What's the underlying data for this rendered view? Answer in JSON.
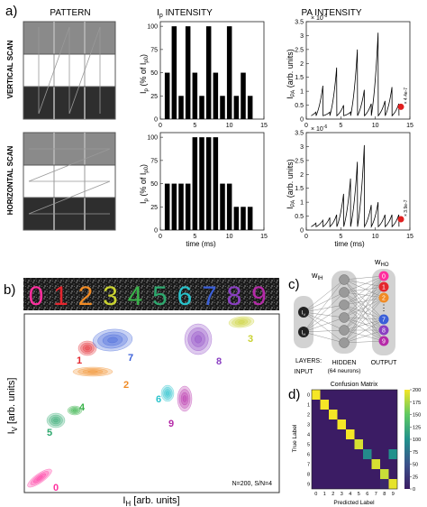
{
  "panel_labels": {
    "a": "a)",
    "b": "b)",
    "c": "c)",
    "d": "d)"
  },
  "panel_a": {
    "pattern_title": "PATTERN",
    "ip_title": "I",
    "ip_title_sub": "p",
    "ip_title_rest": " INTENSITY",
    "pa_title": "PA INTENSITY",
    "row1_label": "VERTICAL SCAN",
    "row2_label": "HORIZONTAL SCAN",
    "ip_ylabel_main": "I",
    "ip_ylabel_sub": "p",
    "ip_ylabel_rest": " (% of I",
    "ip_ylabel_sub2": "p0",
    "ip_ylabel_end": ")",
    "pa_ylabel_main": "I",
    "pa_ylabel_sub": "PA",
    "pa_ylabel_rest": " (arb. units)",
    "pa_scale": "× 10",
    "pa_scale_exp": "-6",
    "xlabel": "time (ms)",
    "ip_yticks": [
      "0",
      "25",
      "50",
      "75",
      "100"
    ],
    "pa_yticks": [
      "0",
      "0.5",
      "1",
      "1.5",
      "2",
      "2.5",
      "3",
      "3.5"
    ],
    "xticks": [
      "0",
      "5",
      "10",
      "15"
    ],
    "pa_marker_label_top": "× 4.4e-7",
    "pa_marker_label_bottom": "× 3.9e-7"
  },
  "panel_b": {
    "digits": [
      "0",
      "1",
      "2",
      "3",
      "4",
      "5",
      "6",
      "7",
      "8",
      "9"
    ],
    "digit_colors": [
      "#ff2f9e",
      "#e4262e",
      "#f08b25",
      "#c9d230",
      "#3ab24a",
      "#2ea86e",
      "#29c3cc",
      "#3a5fd8",
      "#8a3fc2",
      "#b52aa8"
    ],
    "cluster_labels": [
      "0",
      "1",
      "2",
      "3",
      "4",
      "5",
      "6",
      "7",
      "8",
      "9"
    ],
    "ylabel_main": "I",
    "ylabel_sub": "V",
    "ylabel_rest": " [arb. units]",
    "xlabel_main": "I",
    "xlabel_sub": "H",
    "xlabel_rest": " [arb. units]",
    "note": "N=200, S/N=4"
  },
  "panel_c": {
    "w_ih": "w",
    "w_ih_sub": "IH",
    "w_ho": "w",
    "w_ho_sub": "HO",
    "inputs": [
      "I",
      "I"
    ],
    "input_subs": [
      "V",
      "H"
    ],
    "outputs_top": [
      "0",
      "1",
      "2"
    ],
    "outputs_bottom": [
      "7",
      "8",
      "9"
    ],
    "ellipsis": "⋮",
    "layers_label": "LAYERS:",
    "input_label": "INPUT",
    "hidden_label": "HIDDEN",
    "hidden_sub": "(64 neurons)",
    "output_label": "OUTPUT"
  },
  "panel_d": {
    "title": "Confusion Matrix",
    "ylabel": "True Label",
    "xlabel": "Predicted Label",
    "tick_labels": [
      "0",
      "1",
      "2",
      "3",
      "4",
      "5",
      "6",
      "7",
      "8",
      "9"
    ],
    "colorbar_ticks": [
      "0",
      "25",
      "50",
      "75",
      "100",
      "125",
      "150",
      "175",
      "200"
    ],
    "colors": {
      "high": "#f5e626",
      "mid_high": "#2ea583",
      "mid": "#2c7f8e",
      "low": "#3b1c64"
    }
  },
  "chart_data": [
    {
      "type": "bar",
      "title": "Ip INTENSITY (vertical scan)",
      "ylabel": "Ip (% of Ip0)",
      "xlabel": "",
      "ylim": [
        0,
        105
      ],
      "xlim": [
        0,
        15
      ],
      "x": [
        1,
        2,
        3,
        4,
        5,
        6,
        7,
        8,
        9,
        10,
        11,
        12,
        13
      ],
      "values": [
        50,
        100,
        25,
        100,
        50,
        25,
        100,
        50,
        25,
        100,
        25,
        50,
        25
      ]
    },
    {
      "type": "line",
      "title": "PA INTENSITY (vertical scan)",
      "ylabel": "IPA (arb. units)",
      "ylim": [
        0,
        3.5
      ],
      "xlim": [
        0,
        15
      ],
      "series": [
        {
          "values": [
            0.25,
            1.2,
            0.25,
            1.85,
            0.5,
            0.25,
            2.5,
            1.05,
            0.55,
            3.1,
            0.65,
            1.15,
            0.55
          ]
        }
      ],
      "marker": {
        "x": 13.7,
        "y": 0.44
      }
    },
    {
      "type": "bar",
      "title": "Ip INTENSITY (horizontal scan)",
      "ylabel": "Ip (% of Ip0)",
      "xlabel": "time (ms)",
      "ylim": [
        0,
        105
      ],
      "xlim": [
        0,
        15
      ],
      "x": [
        1,
        2,
        3,
        4,
        5,
        6,
        7,
        8,
        9,
        10,
        11,
        12,
        13
      ],
      "values": [
        50,
        50,
        50,
        50,
        100,
        100,
        100,
        100,
        50,
        50,
        25,
        25,
        25
      ]
    },
    {
      "type": "line",
      "title": "PA INTENSITY (horizontal scan)",
      "ylabel": "IPA (arb. units)",
      "xlabel": "time (ms)",
      "ylim": [
        0,
        3.5
      ],
      "xlim": [
        0,
        15
      ],
      "series": [
        {
          "values": [
            0.25,
            0.35,
            0.45,
            0.55,
            1.3,
            1.85,
            2.45,
            3.05,
            0.9,
            1.0,
            0.55,
            0.55,
            0.55
          ]
        }
      ],
      "marker": {
        "x": 13.7,
        "y": 0.39
      }
    },
    {
      "type": "heatmap",
      "title": "Confusion Matrix",
      "xlabel": "Predicted Label",
      "ylabel": "True Label",
      "categories": [
        "0",
        "1",
        "2",
        "3",
        "4",
        "5",
        "6",
        "7",
        "8",
        "9"
      ],
      "colorbar_range": [
        0,
        200
      ],
      "diagonal": [
        200,
        200,
        200,
        200,
        200,
        190,
        95,
        190,
        185,
        195
      ],
      "off_diagonal": [
        {
          "true": "6",
          "pred": "9",
          "value": 100
        },
        {
          "true": "9",
          "pred": "8",
          "value": 10
        }
      ]
    }
  ]
}
